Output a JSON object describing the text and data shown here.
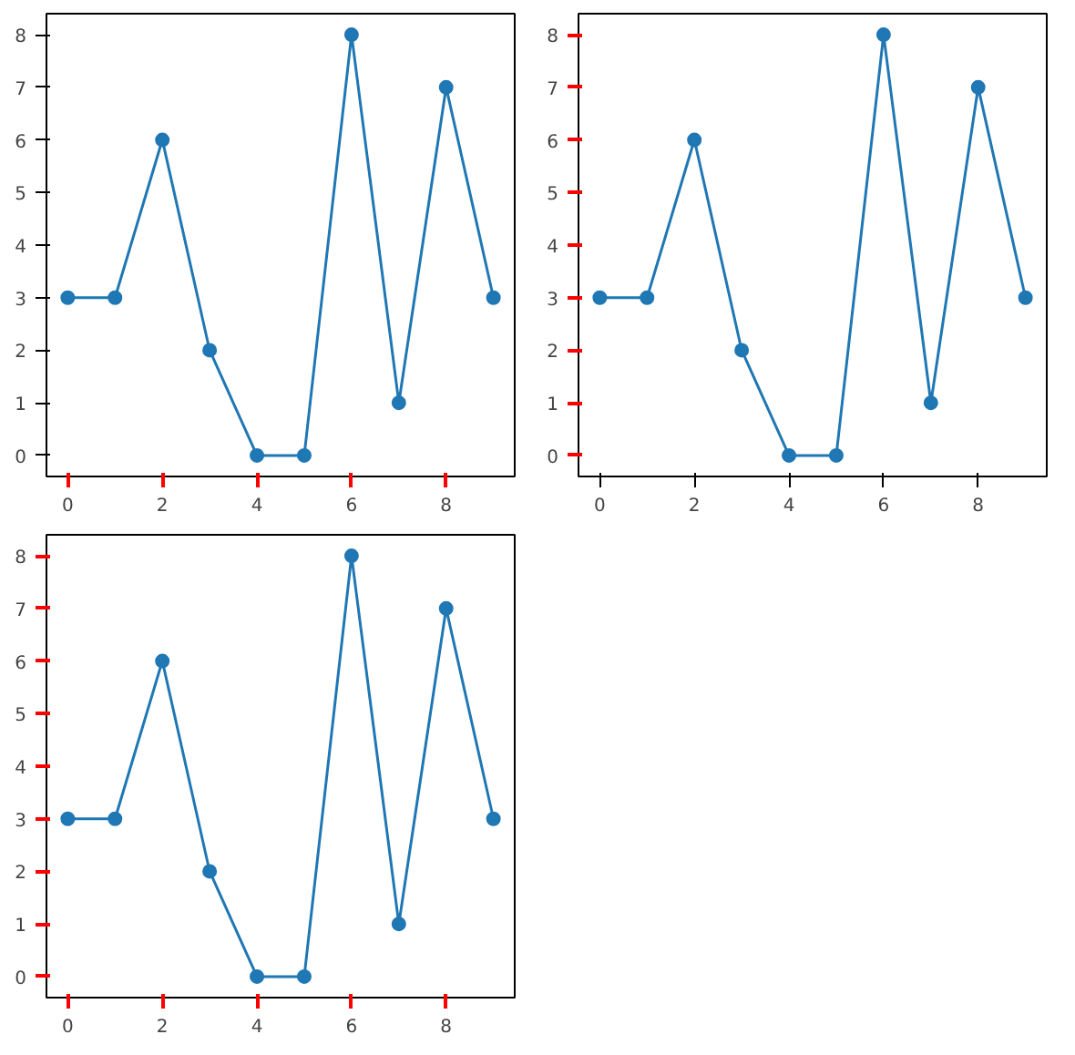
{
  "chart_data": [
    {
      "type": "line",
      "x": [
        0,
        1,
        2,
        3,
        4,
        5,
        6,
        7,
        8,
        9
      ],
      "series": [
        {
          "color": "#1f77b4",
          "values": [
            3,
            3,
            6,
            2,
            0,
            0,
            8,
            1,
            7,
            3
          ]
        }
      ],
      "marker": "circle",
      "line_style": "solid",
      "grid": false,
      "xlim": [
        -0.45,
        9.45
      ],
      "ylim": [
        -0.4,
        8.4
      ],
      "xticks": [
        0,
        2,
        4,
        6,
        8
      ],
      "yticks": [
        0,
        1,
        2,
        3,
        4,
        5,
        6,
        7,
        8
      ]
    },
    {
      "type": "line",
      "x": [
        0,
        1,
        2,
        3,
        4,
        5,
        6,
        7,
        8,
        9
      ],
      "series": [
        {
          "color": "#1f77b4",
          "values": [
            3,
            3,
            6,
            2,
            0,
            0,
            8,
            1,
            7,
            3
          ]
        }
      ],
      "marker": "circle",
      "line_style": "solid",
      "grid": false,
      "xlim": [
        -0.45,
        9.45
      ],
      "ylim": [
        -0.4,
        8.4
      ],
      "xticks": [
        0,
        2,
        4,
        6,
        8
      ],
      "yticks": [
        0,
        1,
        2,
        3,
        4,
        5,
        6,
        7,
        8
      ]
    },
    {
      "type": "line",
      "x": [
        0,
        1,
        2,
        3,
        4,
        5,
        6,
        7,
        8,
        9
      ],
      "series": [
        {
          "color": "#1f77b4",
          "values": [
            3,
            3,
            6,
            2,
            0,
            0,
            8,
            1,
            7,
            3
          ]
        }
      ],
      "marker": "circle",
      "line_style": "solid",
      "grid": false,
      "xlim": [
        -0.45,
        9.45
      ],
      "ylim": [
        -0.4,
        8.4
      ],
      "xticks": [
        0,
        2,
        4,
        6,
        8
      ],
      "yticks": [
        0,
        1,
        2,
        3,
        4,
        5,
        6,
        7,
        8
      ]
    }
  ]
}
